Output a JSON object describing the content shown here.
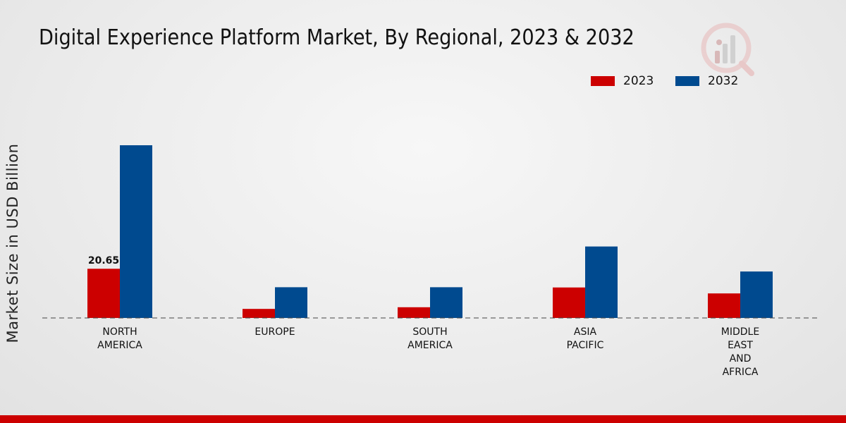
{
  "chart_data": {
    "type": "bar",
    "title": "Digital Experience Platform Market, By Regional, 2023 & 2032",
    "xlabel": "",
    "ylabel": "Market Size in USD Billion",
    "categories": [
      [
        "NORTH",
        "AMERICA"
      ],
      [
        "EUROPE"
      ],
      [
        "SOUTH",
        "AMERICA"
      ],
      [
        "ASIA",
        "PACIFIC"
      ],
      [
        "MIDDLE",
        "EAST",
        "AND",
        "AFRICA"
      ]
    ],
    "series": [
      {
        "name": "2023",
        "color": "#cc0000",
        "values": [
          20.65,
          3.8,
          4.5,
          12.8,
          10.3
        ]
      },
      {
        "name": "2032",
        "color": "#004a8f",
        "values": [
          72.5,
          12.9,
          12.9,
          30.0,
          19.5
        ]
      }
    ],
    "data_labels": [
      {
        "series": 0,
        "index": 0,
        "text": "20.65"
      }
    ],
    "ylim": [
      0,
      95
    ],
    "baseline_style": "dashed",
    "legend_position": "top-right",
    "grid": false
  },
  "colors": {
    "accent": "#cc0000",
    "series_2023": "#cc0000",
    "series_2032": "#004a8f"
  },
  "logo": {
    "icon": "market-research-logo-icon"
  }
}
